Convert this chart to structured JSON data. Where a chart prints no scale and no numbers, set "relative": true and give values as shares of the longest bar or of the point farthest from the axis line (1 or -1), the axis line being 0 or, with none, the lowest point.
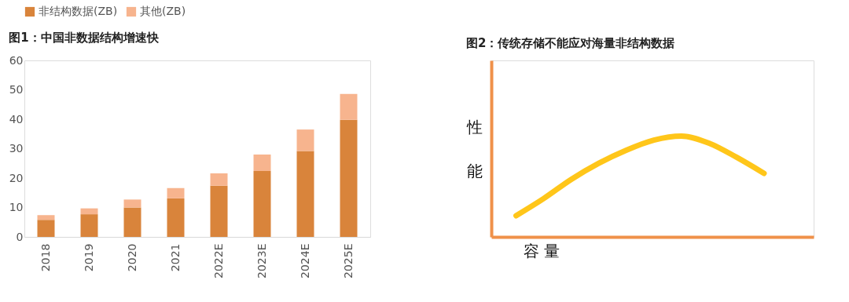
{
  "chart_data": [
    {
      "type": "bar",
      "title": "图1：中国非数据结构增速快",
      "stacked": true,
      "legend": "top",
      "categories": [
        "2018",
        "2019",
        "2020",
        "2021",
        "2022E",
        "2023E",
        "2024E",
        "2025E"
      ],
      "series": [
        {
          "name": "非结构数据(ZB)",
          "color": "#d9843b",
          "values": [
            5.8,
            7.7,
            10.0,
            13.1,
            17.4,
            22.4,
            29.2,
            39.8
          ]
        },
        {
          "name": "其他(ZB)",
          "color": "#f7b48e",
          "values": [
            1.6,
            2.0,
            2.7,
            3.5,
            4.2,
            5.6,
            7.3,
            8.8
          ]
        }
      ],
      "ylim": [
        0,
        60
      ],
      "yticks": [
        0,
        10,
        20,
        30,
        40,
        50,
        60
      ],
      "grid": false
    },
    {
      "type": "line",
      "title": "图2：传统存储不能应对海量非结构数据",
      "relative": true,
      "xlabel": "容 量",
      "ylabel": "性能",
      "tick_labels": false,
      "categories": [
        null,
        null,
        null,
        null,
        null,
        null,
        null,
        null,
        null,
        null
      ],
      "series": [
        {
          "color": "#ffc61a",
          "values": [
            0.21,
            0.38,
            0.57,
            0.73,
            0.86,
            0.96,
            1.0,
            0.93,
            0.79,
            0.63
          ]
        }
      ]
    }
  ]
}
